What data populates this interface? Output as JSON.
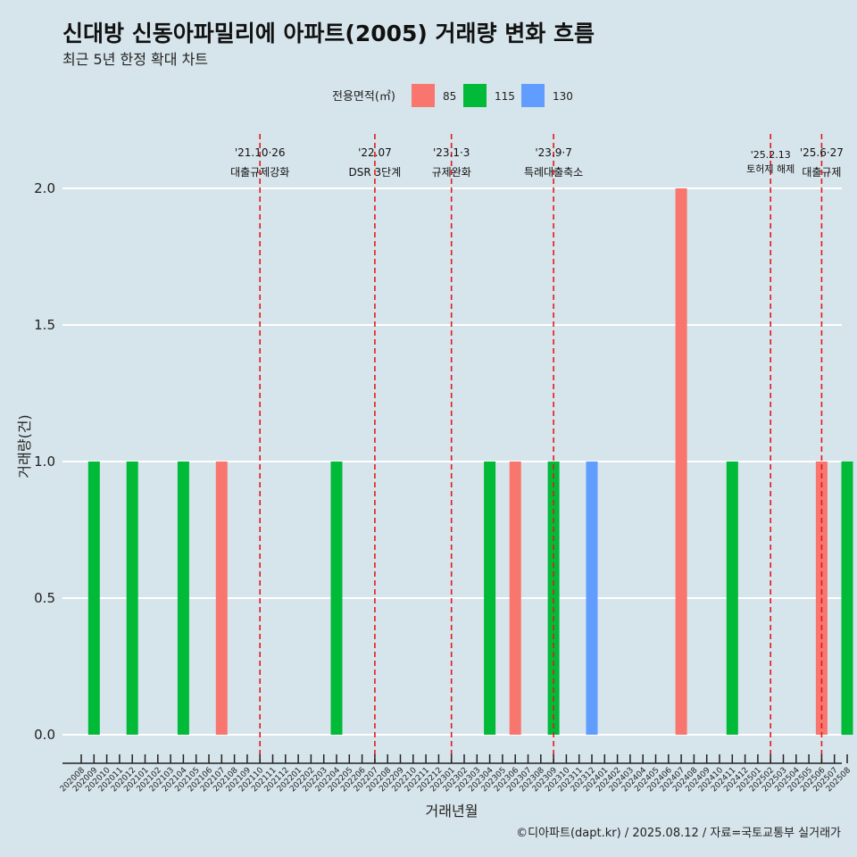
{
  "header": {
    "title": "신대방 신동아파밀리에 아파트(2005) 거래량 변화 흐름",
    "subtitle": "최근 5년 한정 확대 차트",
    "caption": "©디아파트(dapt.kr) / 2025.08.12 / 자료=국토교통부 실거래가"
  },
  "chart_data": {
    "type": "bar",
    "xlabel": "거래년월",
    "ylabel": "거래량(건)",
    "ylim": [
      0,
      2.0
    ],
    "yticks": [
      "0.0",
      "0.5",
      "1.0",
      "1.5",
      "2.0"
    ],
    "grid": true,
    "legend": {
      "title": "전용면적(㎡)",
      "placement": "top",
      "entries": [
        {
          "name": "85",
          "color": "#f8766d"
        },
        {
          "name": "115",
          "color": "#00ba38"
        },
        {
          "name": "130",
          "color": "#619cff"
        }
      ]
    },
    "categories": [
      "202008",
      "202009",
      "202010",
      "202011",
      "202012",
      "202101",
      "202102",
      "202103",
      "202104",
      "202105",
      "202106",
      "202107",
      "202108",
      "202109",
      "202110",
      "202111",
      "202112",
      "202201",
      "202202",
      "202203",
      "202204",
      "202205",
      "202206",
      "202207",
      "202208",
      "202209",
      "202210",
      "202211",
      "202212",
      "202301",
      "202302",
      "202303",
      "202304",
      "202305",
      "202306",
      "202307",
      "202308",
      "202309",
      "202310",
      "202311",
      "202312",
      "202401",
      "202402",
      "202403",
      "202404",
      "202405",
      "202406",
      "202407",
      "202408",
      "202409",
      "202410",
      "202411",
      "202412",
      "202501",
      "202502",
      "202503",
      "202504",
      "202505",
      "202506",
      "202507",
      "202508"
    ],
    "bars": [
      {
        "month": "202009",
        "series": "115",
        "value": 1
      },
      {
        "month": "202012",
        "series": "115",
        "value": 1
      },
      {
        "month": "202104",
        "series": "115",
        "value": 1
      },
      {
        "month": "202107",
        "series": "85",
        "value": 1
      },
      {
        "month": "202204",
        "series": "115",
        "value": 1
      },
      {
        "month": "202304",
        "series": "115",
        "value": 1
      },
      {
        "month": "202306",
        "series": "85",
        "value": 1
      },
      {
        "month": "202309",
        "series": "115",
        "value": 1
      },
      {
        "month": "202312",
        "series": "130",
        "value": 1
      },
      {
        "month": "202407",
        "series": "85",
        "value": 2
      },
      {
        "month": "202411",
        "series": "115",
        "value": 1
      },
      {
        "month": "202506",
        "series": "85",
        "value": 1
      },
      {
        "month": "202508",
        "series": "115",
        "value": 1
      }
    ],
    "annotations": [
      {
        "month": "202110",
        "lines": [
          "'21.10·26",
          "대출규제강화"
        ]
      },
      {
        "month": "202207",
        "lines": [
          "'22.07",
          "DSR 3단계"
        ]
      },
      {
        "month": "202301",
        "lines": [
          "'23.1·3",
          "규제완화"
        ]
      },
      {
        "month": "202309",
        "lines": [
          "'23.9·7",
          "특례대출축소"
        ]
      },
      {
        "month": "202502",
        "lines": [
          "'25.2.13",
          "토허제 해제"
        ]
      },
      {
        "month": "202506",
        "lines": [
          "'25.6·27",
          "대출규제"
        ]
      }
    ]
  }
}
